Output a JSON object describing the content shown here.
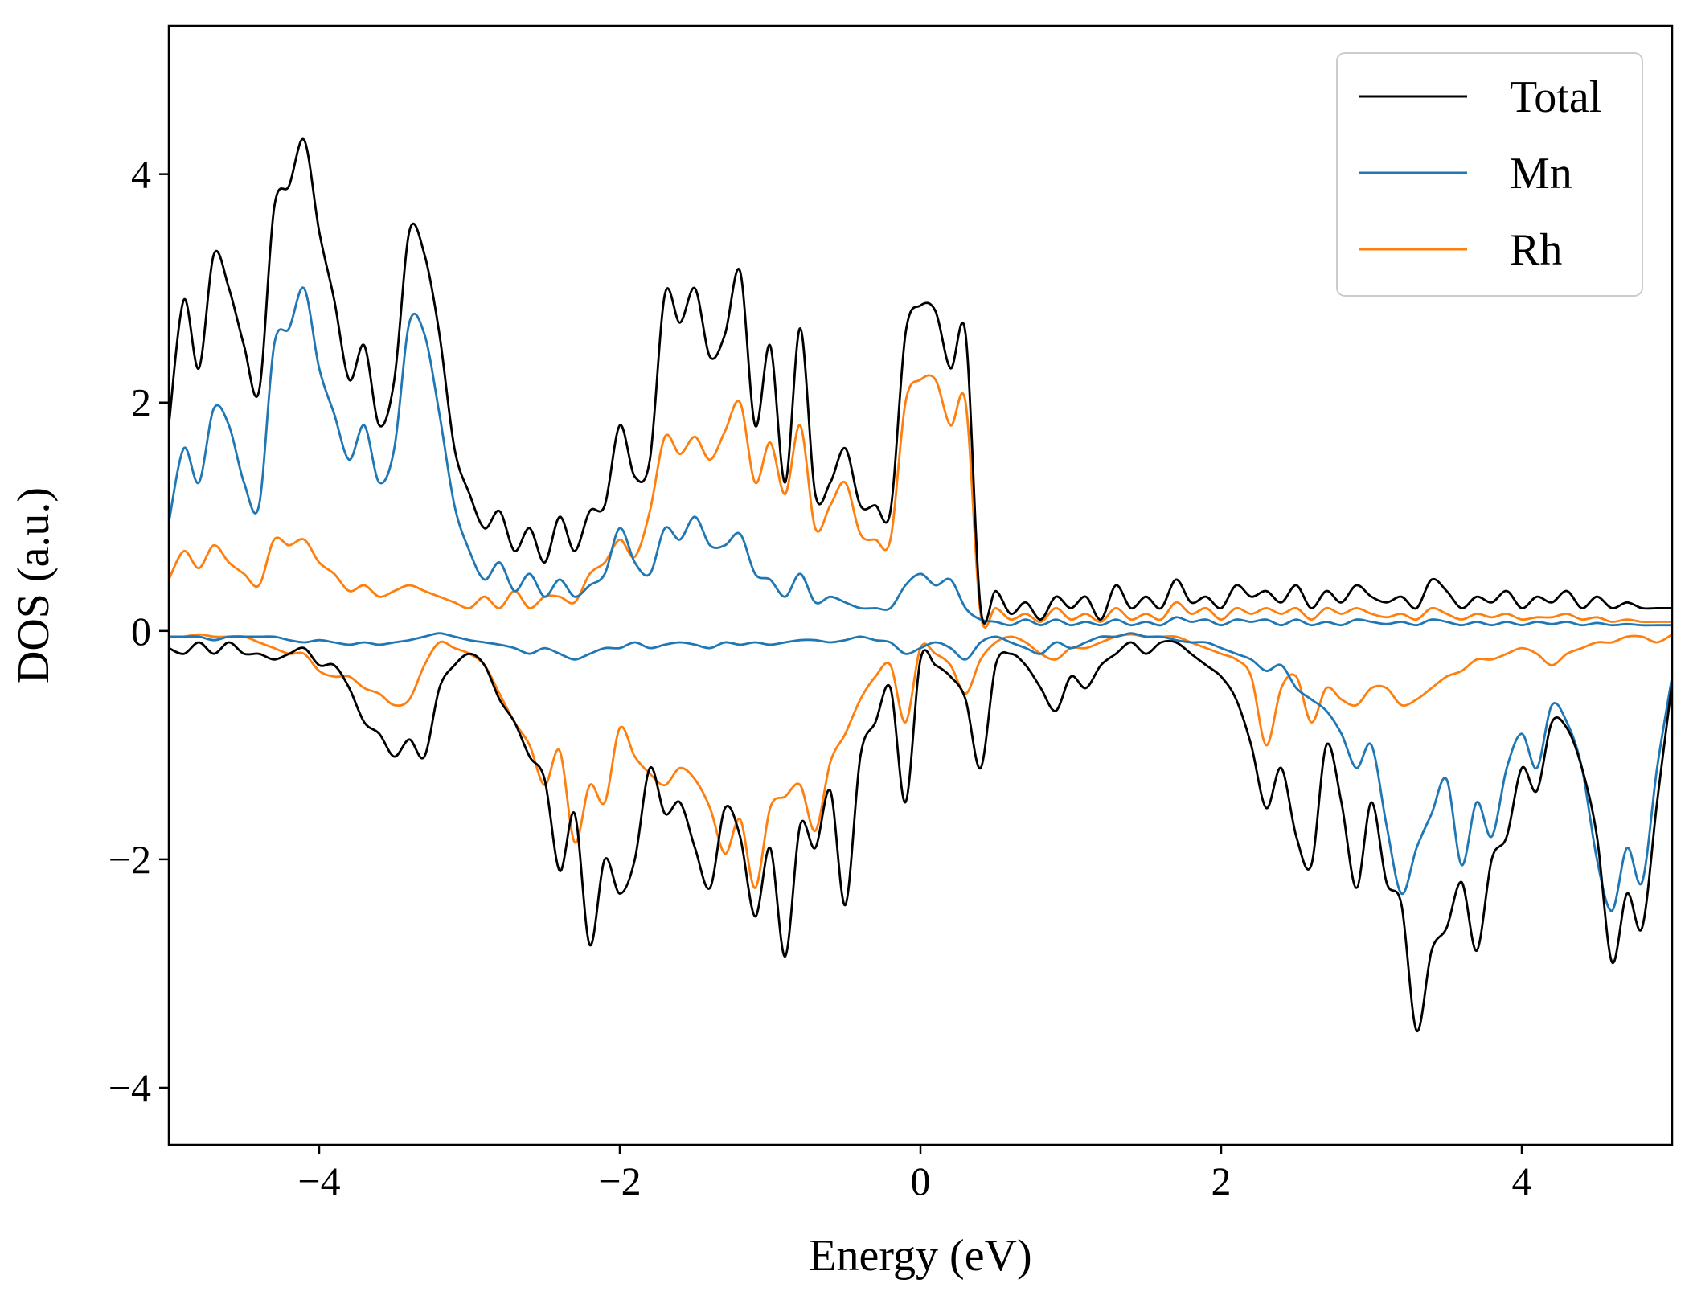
{
  "chart_data": {
    "type": "line",
    "xlabel": "Energy (eV)",
    "ylabel": "DOS (a.u.)",
    "xlim": [
      -5,
      5
    ],
    "ylim": [
      -4.5,
      5.3
    ],
    "xticks": [
      -4,
      -2,
      0,
      2,
      4
    ],
    "xtick_labels": [
      "−4",
      "−2",
      "0",
      "2",
      "4"
    ],
    "yticks": [
      -4,
      -2,
      0,
      2,
      4
    ],
    "ytick_labels": [
      "−4",
      "−2",
      "0",
      "2",
      "4"
    ],
    "grid": false,
    "legend_position": "top-right",
    "colors": {
      "Total": "#000000",
      "Mn": "#1f77b4",
      "Rh": "#ff7f0e"
    },
    "legend": [
      "Total",
      "Mn",
      "Rh"
    ],
    "x": [
      -5.0,
      -4.9,
      -4.8,
      -4.7,
      -4.6,
      -4.5,
      -4.4,
      -4.3,
      -4.2,
      -4.1,
      -4.0,
      -3.9,
      -3.8,
      -3.7,
      -3.6,
      -3.5,
      -3.4,
      -3.3,
      -3.2,
      -3.1,
      -3.0,
      -2.9,
      -2.8,
      -2.7,
      -2.6,
      -2.5,
      -2.4,
      -2.3,
      -2.2,
      -2.1,
      -2.0,
      -1.9,
      -1.8,
      -1.7,
      -1.6,
      -1.5,
      -1.4,
      -1.3,
      -1.2,
      -1.1,
      -1.0,
      -0.9,
      -0.8,
      -0.7,
      -0.6,
      -0.5,
      -0.4,
      -0.3,
      -0.2,
      -0.1,
      0.0,
      0.1,
      0.2,
      0.3,
      0.4,
      0.5,
      0.6,
      0.7,
      0.8,
      0.9,
      1.0,
      1.1,
      1.2,
      1.3,
      1.4,
      1.5,
      1.6,
      1.7,
      1.8,
      1.9,
      2.0,
      2.1,
      2.2,
      2.3,
      2.4,
      2.5,
      2.6,
      2.7,
      2.8,
      2.9,
      3.0,
      3.1,
      3.2,
      3.3,
      3.4,
      3.5,
      3.6,
      3.7,
      3.8,
      3.9,
      4.0,
      4.1,
      4.2,
      4.3,
      4.4,
      4.5,
      4.6,
      4.7,
      4.8,
      4.9,
      5.0
    ],
    "series": [
      {
        "name": "Total",
        "part": "spin-up",
        "values": [
          1.8,
          2.9,
          2.3,
          3.3,
          3.0,
          2.5,
          2.1,
          3.7,
          3.9,
          4.3,
          3.5,
          2.9,
          2.2,
          2.5,
          1.8,
          2.2,
          3.5,
          3.3,
          2.6,
          1.6,
          1.2,
          0.9,
          1.05,
          0.7,
          0.9,
          0.6,
          1.0,
          0.7,
          1.05,
          1.1,
          1.8,
          1.35,
          1.5,
          2.95,
          2.7,
          3.0,
          2.4,
          2.6,
          3.15,
          1.8,
          2.5,
          1.3,
          2.65,
          1.2,
          1.3,
          1.6,
          1.1,
          1.1,
          1.05,
          2.6,
          2.85,
          2.8,
          2.3,
          2.6,
          0.2,
          0.35,
          0.15,
          0.25,
          0.1,
          0.3,
          0.2,
          0.3,
          0.1,
          0.4,
          0.2,
          0.3,
          0.2,
          0.45,
          0.25,
          0.3,
          0.2,
          0.4,
          0.3,
          0.35,
          0.25,
          0.4,
          0.2,
          0.35,
          0.25,
          0.4,
          0.3,
          0.25,
          0.3,
          0.2,
          0.45,
          0.35,
          0.2,
          0.3,
          0.25,
          0.35,
          0.2,
          0.3,
          0.25,
          0.35,
          0.2,
          0.3,
          0.2,
          0.25,
          0.2,
          0.2,
          0.2
        ]
      },
      {
        "name": "Mn",
        "part": "spin-up",
        "values": [
          0.95,
          1.6,
          1.3,
          1.95,
          1.8,
          1.3,
          1.1,
          2.5,
          2.65,
          3.0,
          2.3,
          1.9,
          1.5,
          1.8,
          1.3,
          1.6,
          2.7,
          2.6,
          1.9,
          1.1,
          0.7,
          0.45,
          0.6,
          0.35,
          0.5,
          0.3,
          0.45,
          0.3,
          0.4,
          0.5,
          0.9,
          0.6,
          0.5,
          0.9,
          0.8,
          1.0,
          0.75,
          0.75,
          0.85,
          0.5,
          0.45,
          0.3,
          0.5,
          0.25,
          0.3,
          0.25,
          0.2,
          0.2,
          0.2,
          0.4,
          0.5,
          0.4,
          0.45,
          0.2,
          0.1,
          0.08,
          0.05,
          0.1,
          0.05,
          0.1,
          0.05,
          0.08,
          0.05,
          0.1,
          0.05,
          0.08,
          0.05,
          0.12,
          0.08,
          0.1,
          0.05,
          0.1,
          0.08,
          0.1,
          0.05,
          0.1,
          0.05,
          0.08,
          0.05,
          0.1,
          0.08,
          0.06,
          0.08,
          0.05,
          0.1,
          0.08,
          0.05,
          0.08,
          0.05,
          0.08,
          0.05,
          0.08,
          0.06,
          0.08,
          0.05,
          0.07,
          0.05,
          0.06,
          0.05,
          0.05,
          0.05
        ]
      },
      {
        "name": "Rh",
        "part": "spin-up",
        "values": [
          0.45,
          0.7,
          0.55,
          0.75,
          0.6,
          0.5,
          0.4,
          0.8,
          0.75,
          0.8,
          0.6,
          0.5,
          0.35,
          0.4,
          0.3,
          0.35,
          0.4,
          0.35,
          0.3,
          0.25,
          0.2,
          0.3,
          0.2,
          0.35,
          0.2,
          0.3,
          0.3,
          0.25,
          0.5,
          0.6,
          0.8,
          0.65,
          1.05,
          1.7,
          1.55,
          1.7,
          1.5,
          1.75,
          2.0,
          1.3,
          1.65,
          1.2,
          1.8,
          0.9,
          1.1,
          1.3,
          0.85,
          0.8,
          0.8,
          2.0,
          2.2,
          2.2,
          1.8,
          2.0,
          0.15,
          0.2,
          0.1,
          0.15,
          0.08,
          0.2,
          0.1,
          0.15,
          0.08,
          0.2,
          0.1,
          0.15,
          0.1,
          0.25,
          0.15,
          0.2,
          0.1,
          0.2,
          0.15,
          0.2,
          0.15,
          0.2,
          0.1,
          0.2,
          0.15,
          0.2,
          0.15,
          0.12,
          0.15,
          0.1,
          0.2,
          0.15,
          0.1,
          0.15,
          0.12,
          0.15,
          0.1,
          0.12,
          0.12,
          0.15,
          0.1,
          0.12,
          0.08,
          0.1,
          0.08,
          0.08,
          0.08
        ]
      },
      {
        "name": "Total",
        "part": "spin-down",
        "values": [
          -0.15,
          -0.2,
          -0.1,
          -0.2,
          -0.1,
          -0.2,
          -0.2,
          -0.25,
          -0.2,
          -0.15,
          -0.3,
          -0.3,
          -0.5,
          -0.8,
          -0.9,
          -1.1,
          -0.95,
          -1.1,
          -0.5,
          -0.3,
          -0.2,
          -0.3,
          -0.6,
          -0.8,
          -1.1,
          -1.3,
          -2.1,
          -1.6,
          -2.75,
          -2.0,
          -2.3,
          -2.0,
          -1.2,
          -1.6,
          -1.5,
          -1.9,
          -2.25,
          -1.55,
          -1.8,
          -2.5,
          -1.9,
          -2.85,
          -1.7,
          -1.9,
          -1.4,
          -2.4,
          -1.1,
          -0.8,
          -0.5,
          -1.5,
          -0.25,
          -0.3,
          -0.4,
          -0.6,
          -1.2,
          -0.3,
          -0.2,
          -0.3,
          -0.5,
          -0.7,
          -0.4,
          -0.5,
          -0.3,
          -0.2,
          -0.1,
          -0.2,
          -0.1,
          -0.1,
          -0.2,
          -0.3,
          -0.4,
          -0.6,
          -1.0,
          -1.55,
          -1.2,
          -1.8,
          -2.05,
          -1.0,
          -1.5,
          -2.25,
          -1.5,
          -2.2,
          -2.4,
          -3.5,
          -2.8,
          -2.6,
          -2.2,
          -2.8,
          -2.0,
          -1.8,
          -1.2,
          -1.4,
          -0.8,
          -0.85,
          -1.2,
          -1.8,
          -2.9,
          -2.3,
          -2.6,
          -1.5,
          -0.45
        ]
      },
      {
        "name": "Mn",
        "part": "spin-down",
        "values": [
          -0.05,
          -0.05,
          -0.05,
          -0.08,
          -0.05,
          -0.05,
          -0.05,
          -0.05,
          -0.08,
          -0.1,
          -0.08,
          -0.1,
          -0.12,
          -0.1,
          -0.12,
          -0.1,
          -0.08,
          -0.05,
          -0.02,
          -0.05,
          -0.08,
          -0.1,
          -0.12,
          -0.15,
          -0.2,
          -0.15,
          -0.2,
          -0.25,
          -0.2,
          -0.15,
          -0.15,
          -0.1,
          -0.15,
          -0.12,
          -0.1,
          -0.12,
          -0.15,
          -0.1,
          -0.12,
          -0.1,
          -0.12,
          -0.1,
          -0.08,
          -0.08,
          -0.1,
          -0.08,
          -0.05,
          -0.08,
          -0.1,
          -0.2,
          -0.15,
          -0.1,
          -0.15,
          -0.25,
          -0.1,
          -0.05,
          -0.1,
          -0.15,
          -0.2,
          -0.1,
          -0.15,
          -0.1,
          -0.05,
          -0.05,
          -0.02,
          -0.05,
          -0.05,
          -0.08,
          -0.1,
          -0.1,
          -0.15,
          -0.2,
          -0.25,
          -0.35,
          -0.3,
          -0.5,
          -0.6,
          -0.7,
          -0.9,
          -1.2,
          -1.0,
          -1.7,
          -2.3,
          -1.9,
          -1.6,
          -1.3,
          -2.05,
          -1.5,
          -1.8,
          -1.2,
          -0.9,
          -1.2,
          -0.65,
          -0.8,
          -1.2,
          -2.0,
          -2.45,
          -1.9,
          -2.2,
          -1.2,
          -0.4
        ]
      },
      {
        "name": "Rh",
        "part": "spin-down",
        "values": [
          -0.05,
          -0.05,
          -0.03,
          -0.05,
          -0.05,
          -0.05,
          -0.1,
          -0.15,
          -0.2,
          -0.2,
          -0.35,
          -0.4,
          -0.4,
          -0.5,
          -0.55,
          -0.65,
          -0.6,
          -0.3,
          -0.1,
          -0.15,
          -0.2,
          -0.3,
          -0.55,
          -0.8,
          -1.0,
          -1.35,
          -1.05,
          -1.85,
          -1.35,
          -1.5,
          -0.85,
          -1.1,
          -1.25,
          -1.35,
          -1.2,
          -1.3,
          -1.55,
          -1.95,
          -1.65,
          -2.25,
          -1.55,
          -1.45,
          -1.35,
          -1.75,
          -1.15,
          -0.9,
          -0.6,
          -0.4,
          -0.3,
          -0.8,
          -0.15,
          -0.2,
          -0.3,
          -0.55,
          -0.25,
          -0.1,
          -0.05,
          -0.1,
          -0.2,
          -0.25,
          -0.15,
          -0.15,
          -0.1,
          -0.05,
          -0.03,
          -0.05,
          -0.05,
          -0.05,
          -0.1,
          -0.15,
          -0.2,
          -0.25,
          -0.4,
          -1.0,
          -0.5,
          -0.4,
          -0.8,
          -0.5,
          -0.6,
          -0.65,
          -0.5,
          -0.5,
          -0.65,
          -0.6,
          -0.5,
          -0.4,
          -0.35,
          -0.25,
          -0.25,
          -0.2,
          -0.15,
          -0.2,
          -0.3,
          -0.2,
          -0.15,
          -0.1,
          -0.1,
          -0.05,
          -0.05,
          -0.1,
          -0.03
        ]
      }
    ]
  }
}
